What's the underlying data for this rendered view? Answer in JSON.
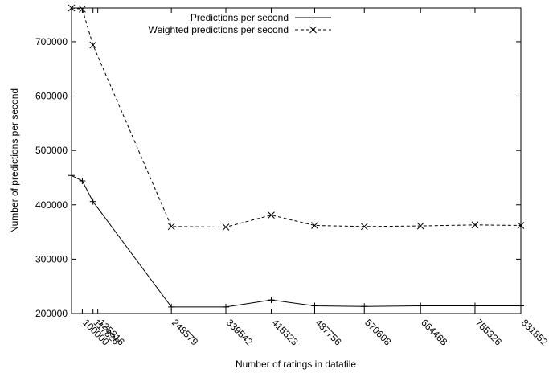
{
  "chart_data": {
    "type": "line",
    "title": "",
    "xlabel": "Number of ratings in datafile",
    "ylabel": "Number of predictions per second",
    "x_ticks": [
      100000,
      117820,
      125816,
      248579,
      339542,
      415323,
      487756,
      570608,
      664468,
      755326,
      831852
    ],
    "x_tick_labels": [
      "100000",
      "117820",
      "125816",
      "248579",
      "339542",
      "415323",
      "487756",
      "570608",
      "664468",
      "755326",
      "831852"
    ],
    "y_ticks": [
      200000,
      300000,
      400000,
      500000,
      600000,
      700000
    ],
    "y_tick_labels": [
      "200000",
      "300000",
      "400000",
      "500000",
      "600000",
      "700000"
    ],
    "xlim": [
      82000,
      831852
    ],
    "ylim": [
      200000,
      762000
    ],
    "grid": false,
    "legend_position": "top-right",
    "series": [
      {
        "name": "Predictions per second",
        "line_style": "solid",
        "marker": "plus",
        "x": [
          82000,
          100000,
          117820,
          248579,
          339542,
          415323,
          487756,
          570608,
          664468,
          755326,
          831852
        ],
        "y": [
          454000,
          444000,
          406000,
          212000,
          212000,
          225000,
          214000,
          213000,
          214000,
          214000,
          214000
        ]
      },
      {
        "name": "Weighted predictions per second",
        "line_style": "dashed",
        "marker": "cross",
        "x": [
          82000,
          100000,
          117820,
          248579,
          339542,
          415323,
          487756,
          570608,
          664468,
          755326,
          831852
        ],
        "y": [
          762000,
          760000,
          694000,
          360000,
          359000,
          381000,
          362000,
          360000,
          361000,
          363000,
          362000
        ]
      }
    ]
  }
}
